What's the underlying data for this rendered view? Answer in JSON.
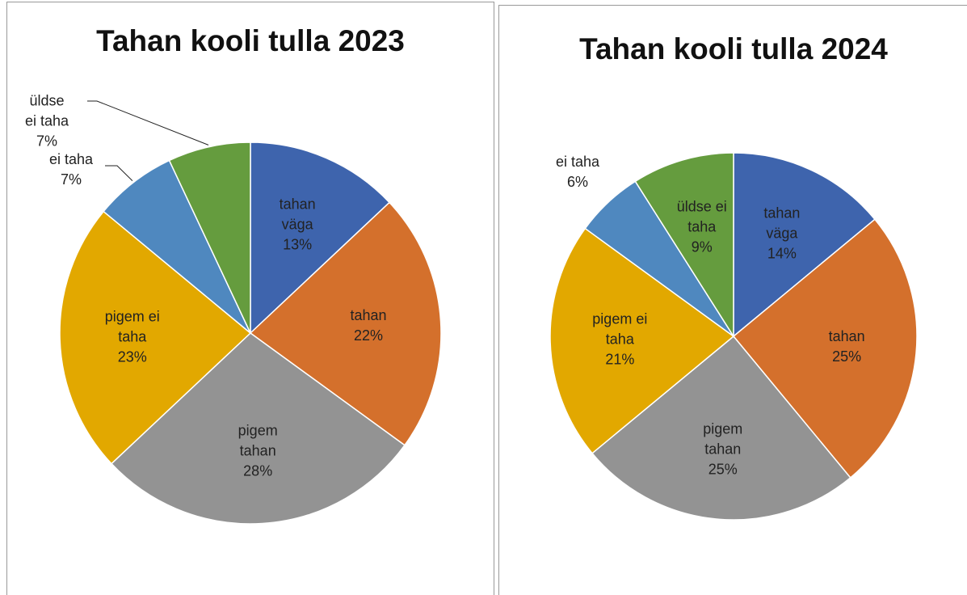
{
  "chart_data": [
    {
      "type": "pie",
      "title": "Tahan kooli tulla 2023",
      "categories": [
        "tahan väga",
        "tahan",
        "pigem tahan",
        "pigem ei taha",
        "ei taha",
        "üldse ei taha"
      ],
      "values": [
        13,
        22,
        28,
        23,
        7,
        7
      ],
      "value_labels": [
        "13%",
        "22%",
        "28%",
        "23%",
        "7%",
        "7%"
      ],
      "colors": [
        "#3e64ad",
        "#d4702c",
        "#939393",
        "#e2a800",
        "#4f88bf",
        "#659c3e"
      ]
    },
    {
      "type": "pie",
      "title": "Tahan kooli tulla 2024",
      "categories": [
        "tahan väga",
        "tahan",
        "pigem tahan",
        "pigem ei taha",
        "ei taha",
        "üldse ei taha"
      ],
      "values": [
        14,
        25,
        25,
        21,
        6,
        9
      ],
      "value_labels": [
        "14%",
        "25%",
        "25%",
        "21%",
        "6%",
        "9%"
      ],
      "colors": [
        "#3e64ad",
        "#d4702c",
        "#939393",
        "#e2a800",
        "#4f88bf",
        "#659c3e"
      ]
    }
  ]
}
